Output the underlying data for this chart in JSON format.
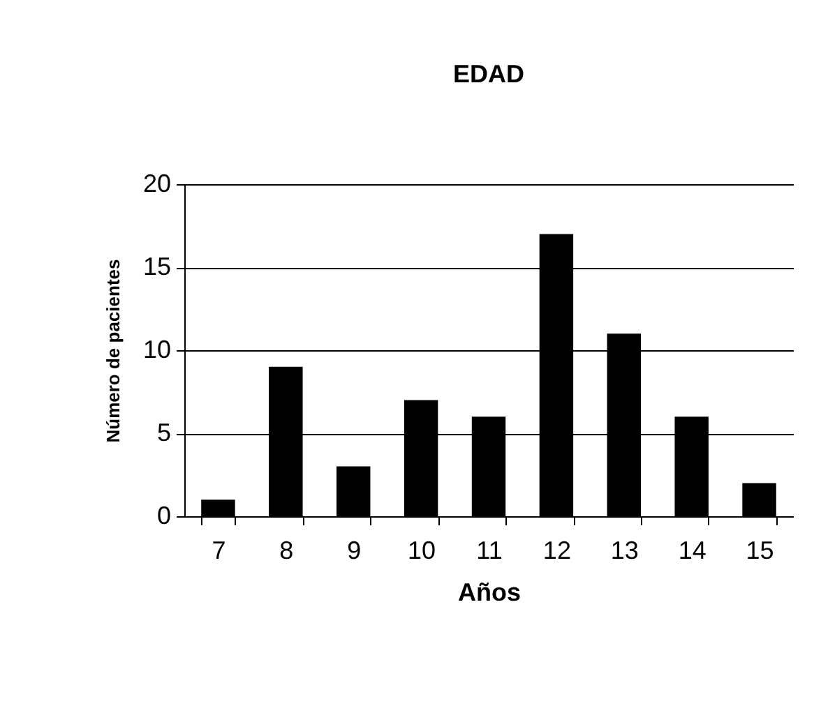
{
  "chart_data": {
    "type": "bar",
    "title": "EDAD",
    "xlabel": "Años",
    "ylabel": "Número de pacientes",
    "categories": [
      "7",
      "8",
      "9",
      "10",
      "11",
      "12",
      "13",
      "14",
      "15"
    ],
    "values": [
      1,
      9,
      3,
      7,
      6,
      17,
      11,
      6,
      2
    ],
    "color": "#000000",
    "ylim": [
      0,
      20
    ],
    "yticks": [
      0,
      5,
      10,
      15,
      20
    ],
    "grid": "y"
  }
}
